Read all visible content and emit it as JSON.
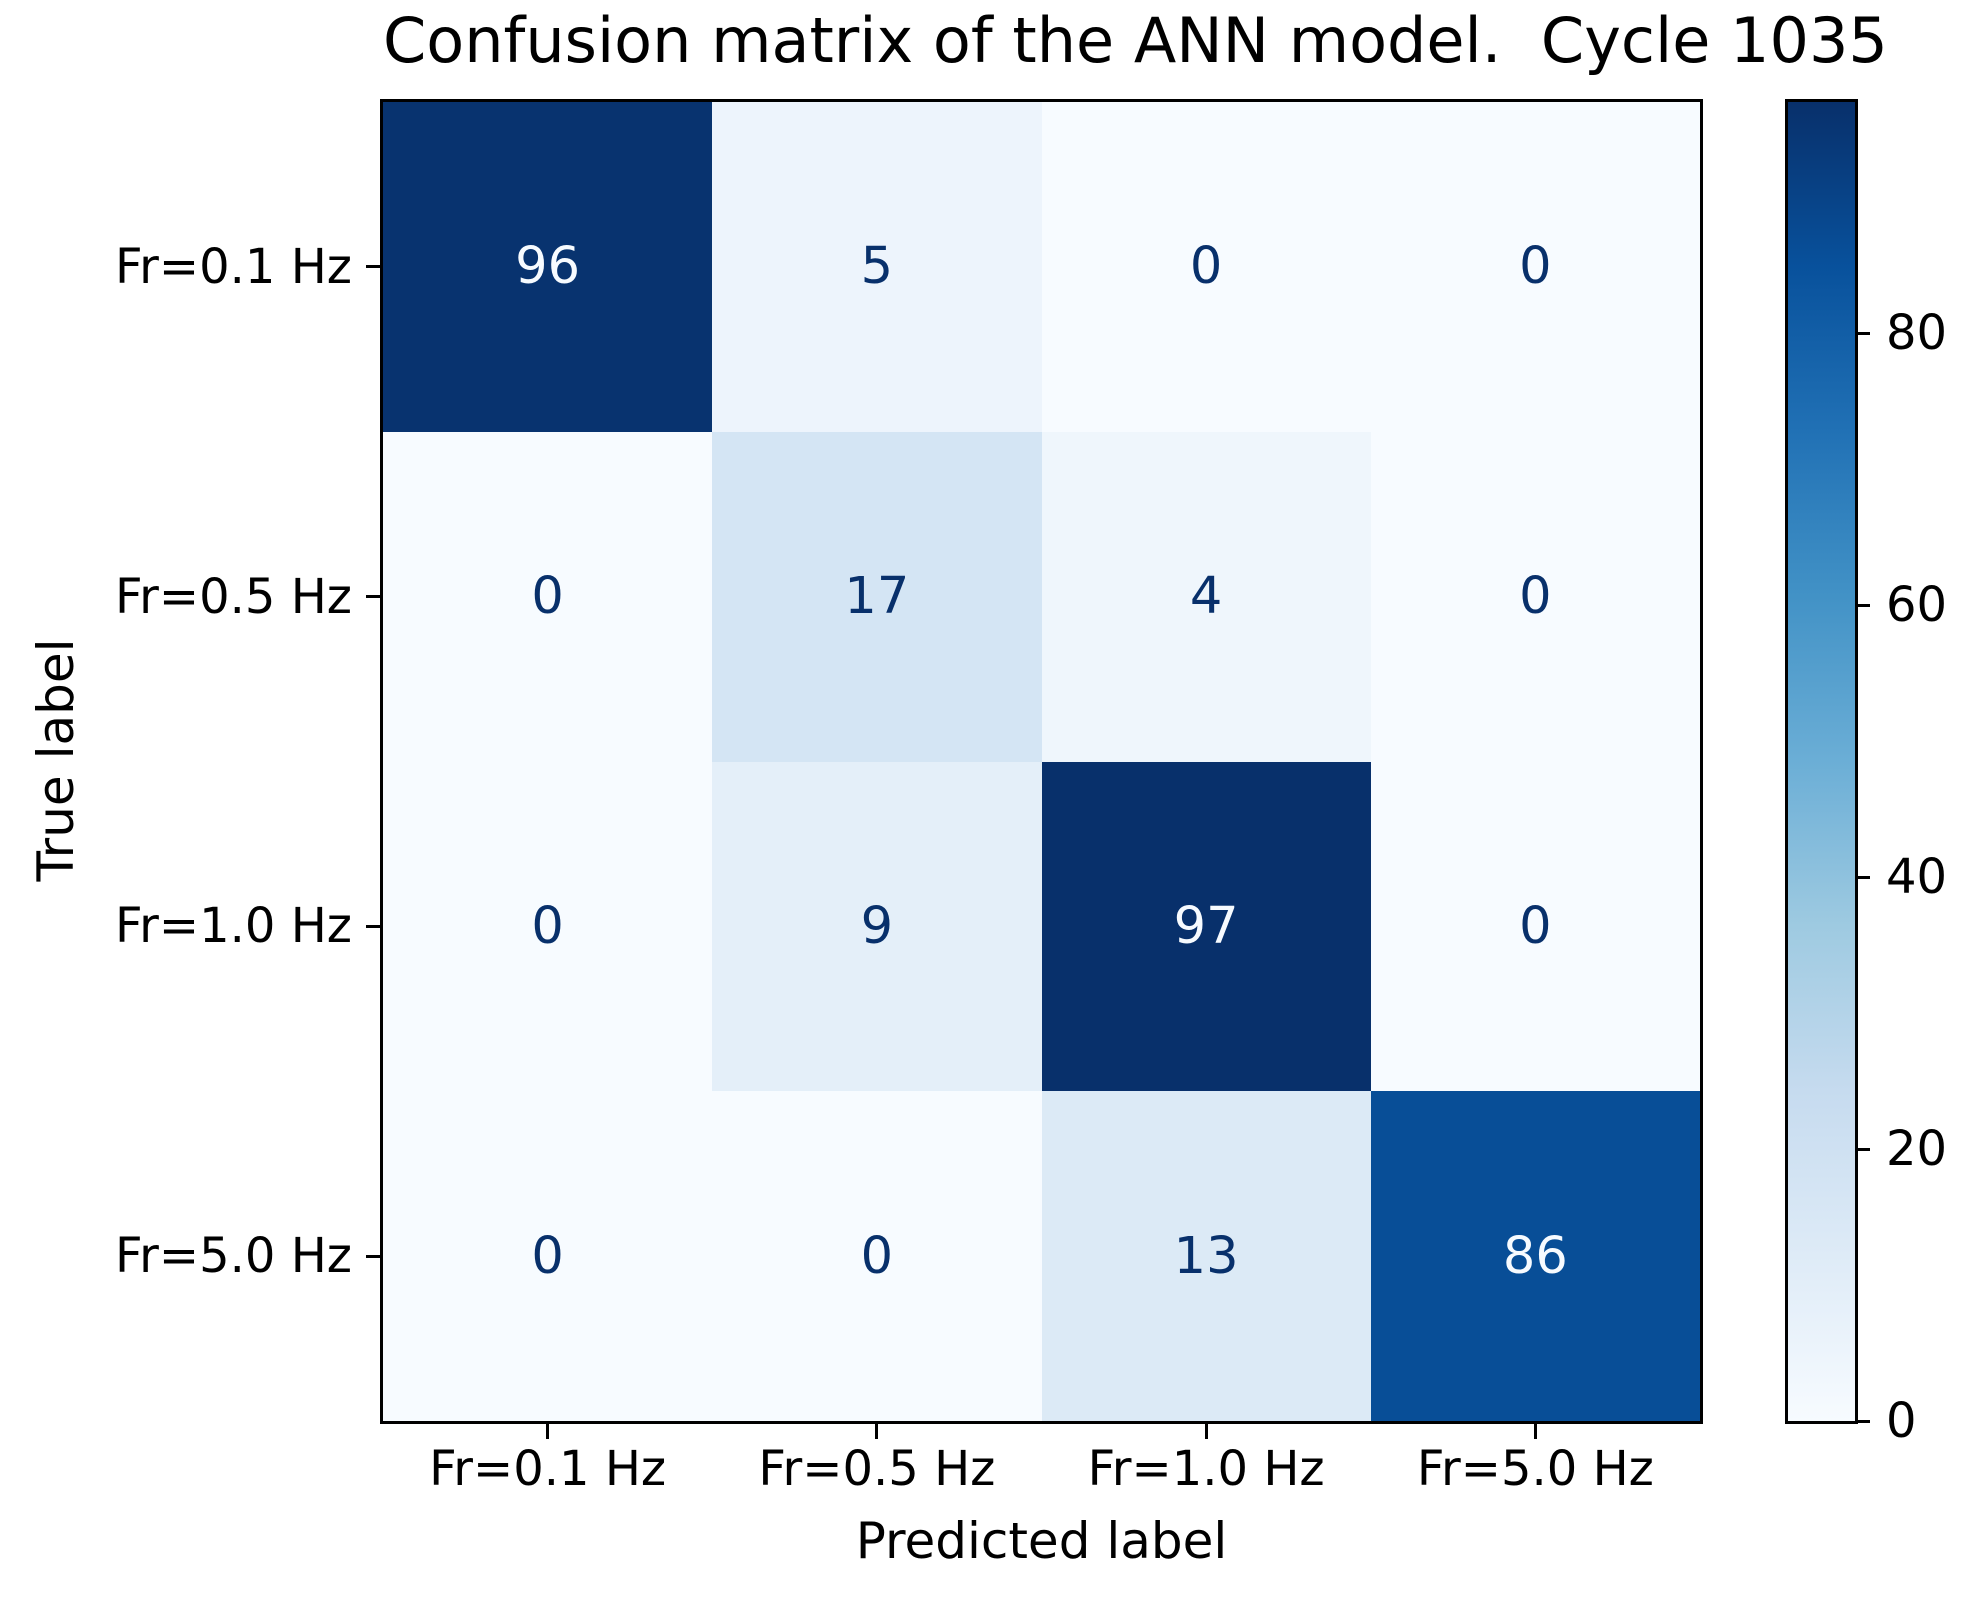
{
  "title": "Confusion matrix of the ANN model.  Cycle 1035",
  "chart_data": {
    "type": "heatmap",
    "title": "Confusion matrix of the ANN model.  Cycle 1035",
    "xlabel": "Predicted label",
    "ylabel": "True label",
    "x_tick_labels": [
      "Fr=0.1 Hz",
      "Fr=0.5 Hz",
      "Fr=1.0 Hz",
      "Fr=5.0 Hz"
    ],
    "y_tick_labels": [
      "Fr=0.1 Hz",
      "Fr=0.5 Hz",
      "Fr=1.0 Hz",
      "Fr=5.0 Hz"
    ],
    "matrix": [
      [
        96,
        5,
        0,
        0
      ],
      [
        0,
        17,
        4,
        0
      ],
      [
        0,
        9,
        97,
        0
      ],
      [
        0,
        0,
        13,
        86
      ]
    ],
    "vmin": 0,
    "vmax": 97,
    "colormap": "Blues",
    "colorbar_ticks": [
      0,
      20,
      40,
      60,
      80
    ],
    "colorbar_position": "right",
    "grid": false
  },
  "colors": {
    "background": "#ffffff",
    "axis_text": "#000000",
    "spine": "#000000",
    "cell_text_dark": "#08306b",
    "cell_text_light": "#f7fbff",
    "blues_stops": [
      "#f7fbff",
      "#deebf7",
      "#c6dbef",
      "#9ecae1",
      "#6baed6",
      "#4292c6",
      "#2171b5",
      "#08519c",
      "#08306b"
    ]
  }
}
